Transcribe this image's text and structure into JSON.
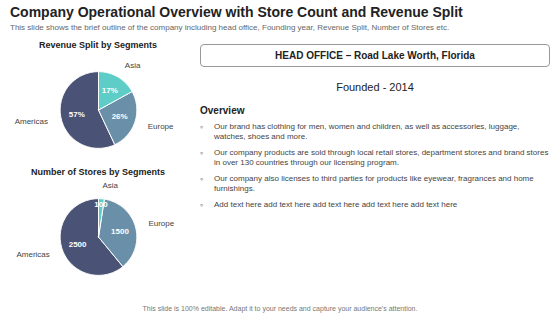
{
  "title": "Company Operational Overview with Store Count and Revenue Split",
  "subtitle": "This slide shows the brief outline of the company including head office, Founding year, Revenue Split, Number of Stores etc.",
  "annotations": [
    "HEAD OFFICE – Road Lake Worth, Florida",
    "Founded - 2014",
    "Overview",
    "◦",
    "Our brand has clothing for men, women and children, as well as accessories, luggage, watches, shoes and more.",
    "Our company products are sold through local retail stores, department stores and brand stores in over 130 countries through our licensing program.",
    "Our company also licenses to third parties for products like eyewear, fragrances and home furnishings.",
    "Add text here add text here add text here add text here add text here",
    "This slide is 100% editable. Adapt it to your needs and capture your audience's attention."
  ],
  "chart_data": [
    {
      "type": "pie",
      "title": "Revenue Split by Segments",
      "categories": [
        "Americas",
        "Europe",
        "Asia"
      ],
      "values": [
        57,
        26,
        17
      ],
      "value_labels": [
        "57%",
        "26%",
        "17%"
      ],
      "colors": [
        "#4a5275",
        "#6a8fa8",
        "#5ecdc8"
      ],
      "data_labels": true
    },
    {
      "type": "pie",
      "title": "Number of Stores by Segments",
      "categories": [
        "Americas",
        "Europe",
        "Asia"
      ],
      "values": [
        2500,
        1500,
        100
      ],
      "colors": [
        "#4a5275",
        "#6a8fa8",
        "#5ecdc8"
      ],
      "data_labels": true
    }
  ]
}
